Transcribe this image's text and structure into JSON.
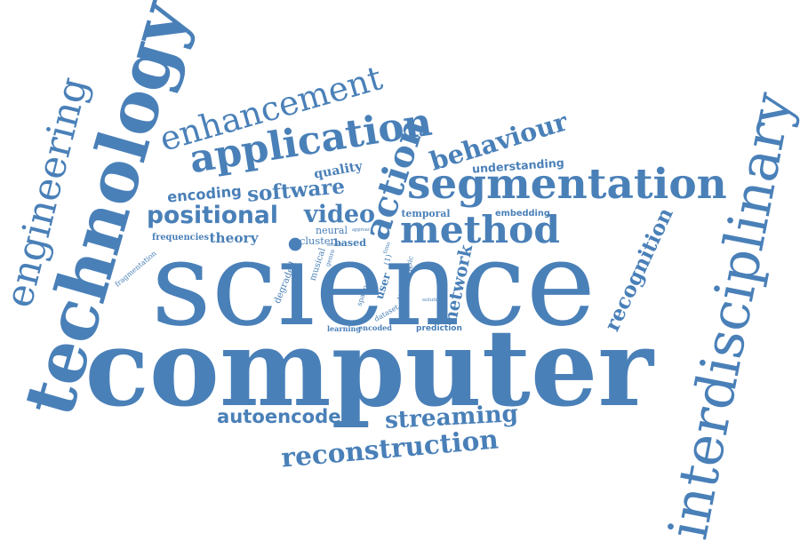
{
  "colors": {
    "word": "#4a80b8",
    "background": "#ffffff"
  },
  "words": [
    "computer",
    "science",
    "technology",
    "interdisciplinary",
    "segmentation",
    "application",
    "method",
    "engineering",
    "enhancement",
    "reconstruction",
    "streaming",
    "autoencoder",
    "action",
    "behaviour",
    "software",
    "positional",
    "video",
    "theory",
    "recognition",
    "network",
    "quality",
    "encoding",
    "understanding",
    "embedding",
    "temporal",
    "neural",
    "cluster",
    "based",
    "frequencies",
    "fragmentation",
    "degraded",
    "musical",
    "user",
    "spatio",
    "learning",
    "encoded",
    "dataset",
    "prediction",
    "different",
    "music",
    "genre",
    "model",
    "approach",
    "time",
    "solution",
    "(1)"
  ]
}
